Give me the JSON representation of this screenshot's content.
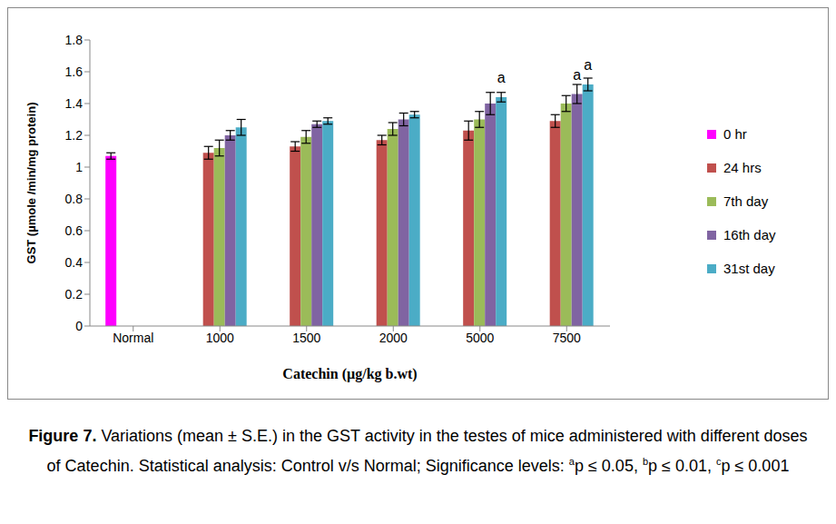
{
  "chart_data": {
    "type": "bar",
    "x_label": "Catechin (µg/kg b.wt)",
    "y_label": "GST (µmole /min/mg protein)",
    "categories": [
      "Normal",
      "1000",
      "1500",
      "2000",
      "5000",
      "7500"
    ],
    "series": [
      {
        "name": "0 hr",
        "color": "#ff00ff",
        "values": [
          1.07,
          null,
          null,
          null,
          null,
          null
        ],
        "errors": [
          0.02,
          null,
          null,
          null,
          null,
          null
        ],
        "annotations": [
          null,
          null,
          null,
          null,
          null,
          null
        ]
      },
      {
        "name": "24 hrs",
        "color": "#c0504d",
        "values": [
          null,
          1.09,
          1.13,
          1.17,
          1.23,
          1.29
        ],
        "errors": [
          null,
          0.04,
          0.03,
          0.03,
          0.06,
          0.04
        ],
        "annotations": [
          null,
          null,
          null,
          null,
          null,
          null
        ]
      },
      {
        "name": "7th day",
        "color": "#9bbb59",
        "values": [
          null,
          1.12,
          1.19,
          1.24,
          1.3,
          1.4
        ],
        "errors": [
          null,
          0.05,
          0.04,
          0.04,
          0.05,
          0.05
        ],
        "annotations": [
          null,
          null,
          null,
          null,
          null,
          null
        ]
      },
      {
        "name": "16th day",
        "color": "#8064a2",
        "values": [
          null,
          1.2,
          1.27,
          1.3,
          1.4,
          1.46
        ],
        "errors": [
          null,
          0.03,
          0.02,
          0.04,
          0.07,
          0.06
        ],
        "annotations": [
          null,
          null,
          null,
          null,
          null,
          "a"
        ]
      },
      {
        "name": "31st day",
        "color": "#4bacc6",
        "values": [
          null,
          1.25,
          1.29,
          1.33,
          1.44,
          1.52
        ],
        "errors": [
          null,
          0.05,
          0.02,
          0.02,
          0.03,
          0.04
        ],
        "annotations": [
          null,
          null,
          null,
          null,
          "a",
          "a"
        ]
      }
    ],
    "ylim": [
      0,
      1.8
    ],
    "yticks": [
      0,
      0.2,
      0.4,
      0.6,
      0.8,
      1,
      1.2,
      1.4,
      1.6,
      1.8
    ],
    "grid": false,
    "legend": "right",
    "caption": {
      "label": "Figure 7.",
      "text": " Variations (mean ± S.E.) in the GST activity in the testes of mice administered with different doses of Catechin.  Statistical analysis: Control v/s Normal; Significance levels: ",
      "levels": [
        {
          "mark": "a",
          "text": "p ≤ 0.05, "
        },
        {
          "mark": "b",
          "text": "p ≤ 0.01, "
        },
        {
          "mark": "c",
          "text": "p ≤ 0.001"
        }
      ]
    }
  }
}
